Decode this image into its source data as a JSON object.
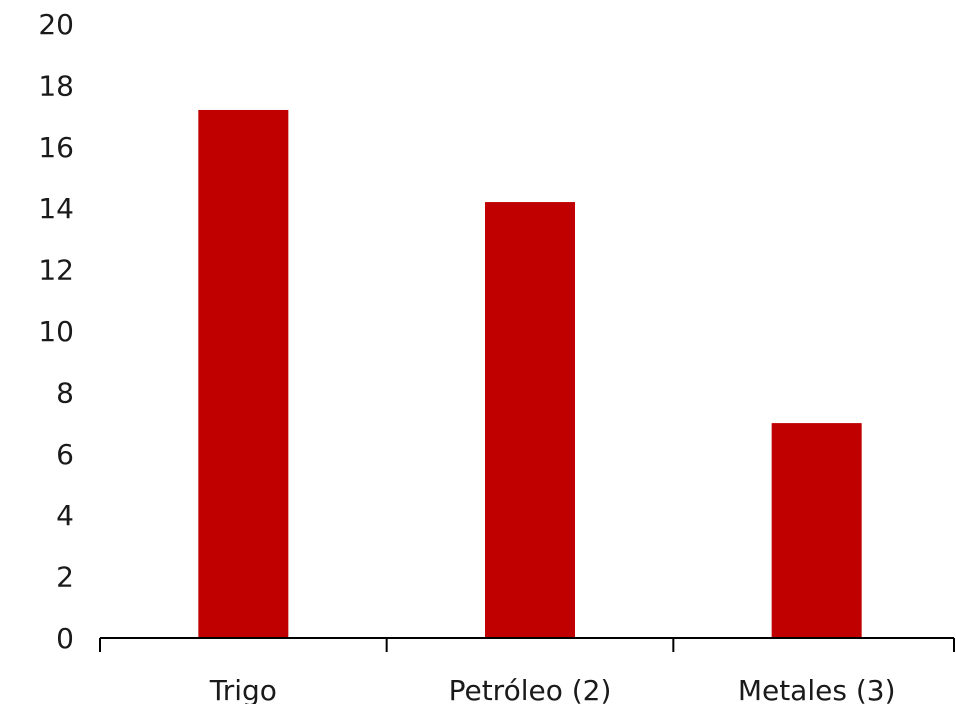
{
  "chart_data": {
    "type": "bar",
    "title": "",
    "xlabel": "",
    "ylabel": "",
    "categories": [
      "Trigo",
      "Petróleo (2)",
      "Metales (3)"
    ],
    "values": [
      17.2,
      14.2,
      7.0
    ],
    "ylim": [
      0,
      20
    ],
    "yticks": [
      0,
      2,
      4,
      6,
      8,
      10,
      12,
      14,
      16,
      18,
      20
    ],
    "ytick_labels": [
      "0",
      "2",
      "4",
      "6",
      "8",
      "10",
      "12",
      "14",
      "16",
      "18",
      "20"
    ],
    "grid": false,
    "legend": "none",
    "bar_color": "#c00000",
    "axis_color": "#000000"
  }
}
